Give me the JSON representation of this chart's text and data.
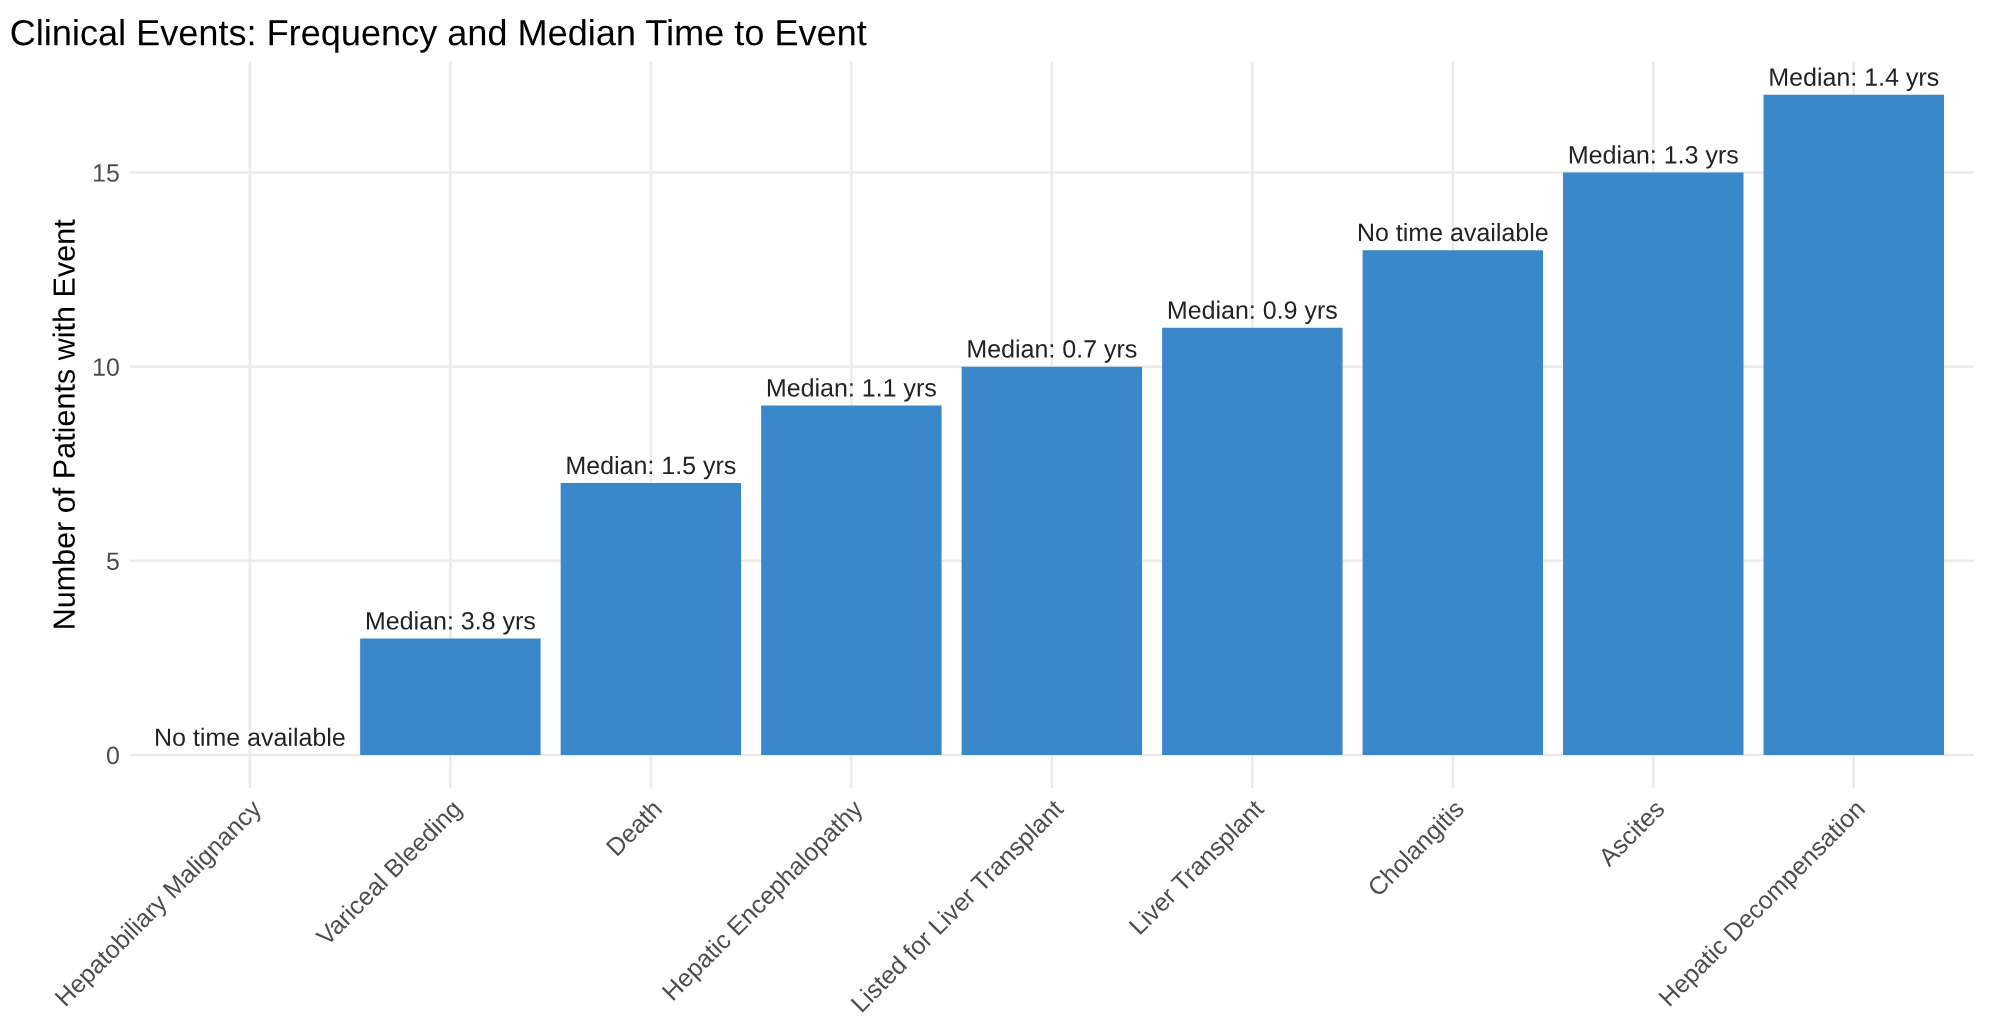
{
  "chart_data": {
    "type": "bar",
    "title": "Clinical Events: Frequency and Median Time to Event",
    "ylabel": "Number of Patients with Event",
    "categories": [
      "Hepatobiliary Malignancy",
      "Variceal Bleeding",
      "Death",
      "Hepatic Encephalopathy",
      "Listed for Liver Transplant",
      "Liver Transplant",
      "Cholangitis",
      "Ascites",
      "Hepatic Decompensation"
    ],
    "values": [
      0,
      3,
      7,
      9,
      10,
      11,
      13,
      15,
      17
    ],
    "annotations": [
      {
        "text": "No time available",
        "x": "Hepatobiliary Malignancy",
        "y": 0
      },
      {
        "text": "Median: 3.8 yrs",
        "x": "Variceal Bleeding",
        "y": 3
      },
      {
        "text": "Median: 1.5 yrs",
        "x": "Death",
        "y": 7
      },
      {
        "text": "Median: 1.1 yrs",
        "x": "Hepatic Encephalopathy",
        "y": 9
      },
      {
        "text": "Median: 0.7 yrs",
        "x": "Listed for Liver Transplant",
        "y": 10
      },
      {
        "text": "Median: 0.9 yrs",
        "x": "Liver Transplant",
        "y": 11
      },
      {
        "text": "No time available",
        "x": "Cholangitis",
        "y": 13
      },
      {
        "text": "Median: 1.3 yrs",
        "x": "Ascites",
        "y": 15
      },
      {
        "text": "Median: 1.4 yrs",
        "x": "Hepatic Decompensation",
        "y": 17
      }
    ],
    "color": "#3a87c9",
    "ylim": [
      -0.85,
      17.85
    ],
    "yticks": [
      0,
      5,
      10,
      15
    ],
    "grid": true
  }
}
